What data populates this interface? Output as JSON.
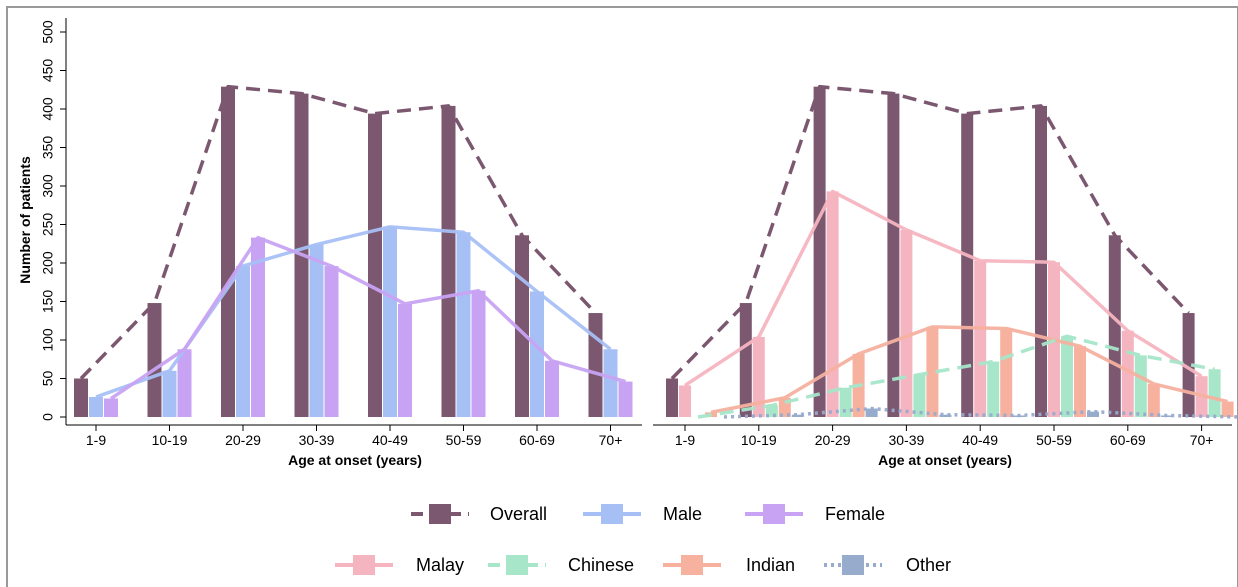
{
  "chart_data": [
    {
      "type": "bar",
      "categories": [
        "1-9",
        "10-19",
        "20-29",
        "30-39",
        "40-49",
        "50-59",
        "60-69",
        "70+"
      ],
      "xlabel": "Age at onset (years)",
      "ylabel": "Number of patients",
      "ylim": [
        0,
        500
      ],
      "yticks": [
        0,
        50,
        100,
        150,
        200,
        250,
        300,
        350,
        400,
        450,
        500
      ],
      "series": [
        {
          "name": "Overall",
          "values": [
            50,
            148,
            429,
            420,
            394,
            404,
            236,
            135
          ],
          "color": "#7b5870",
          "line": "dashed"
        },
        {
          "name": "Male",
          "values": [
            26,
            60,
            196,
            224,
            247,
            240,
            163,
            88
          ],
          "color": "#a6c0f5",
          "line": "solid"
        },
        {
          "name": "Female",
          "values": [
            24,
            88,
            233,
            196,
            147,
            164,
            73,
            46
          ],
          "color": "#c8a3f3",
          "line": "solid"
        }
      ]
    },
    {
      "type": "bar",
      "categories": [
        "1-9",
        "10-19",
        "20-29",
        "30-39",
        "40-49",
        "50-59",
        "60-69",
        "70+"
      ],
      "xlabel": "Age at onset (years)",
      "ylabel": "",
      "ylim": [
        0,
        500
      ],
      "series": [
        {
          "name": "Overall",
          "values": [
            50,
            148,
            429,
            420,
            394,
            404,
            236,
            135
          ],
          "color": "#7b5870",
          "line": "dashed"
        },
        {
          "name": "Malay",
          "values": [
            41,
            104,
            293,
            243,
            203,
            201,
            112,
            53
          ],
          "color": "#f5b5c0",
          "line": "solid"
        },
        {
          "name": "Indian",
          "values": [
            6,
            25,
            82,
            117,
            115,
            92,
            43,
            20
          ],
          "color": "#f6b19f",
          "line": "solid"
        },
        {
          "name": "Chinese",
          "values": [
            0,
            15,
            38,
            55,
            72,
            105,
            80,
            62
          ],
          "color": "#a7e6c9",
          "line": "dashed"
        },
        {
          "name": "Other",
          "values": [
            0,
            3,
            11,
            3,
            2,
            7,
            2,
            0
          ],
          "color": "#97abcd",
          "line": "dotted"
        }
      ]
    }
  ],
  "legend": {
    "row1": [
      "Overall",
      "Male",
      "Female"
    ],
    "row2": [
      "Malay",
      "Chinese",
      "Indian",
      "Other"
    ]
  }
}
